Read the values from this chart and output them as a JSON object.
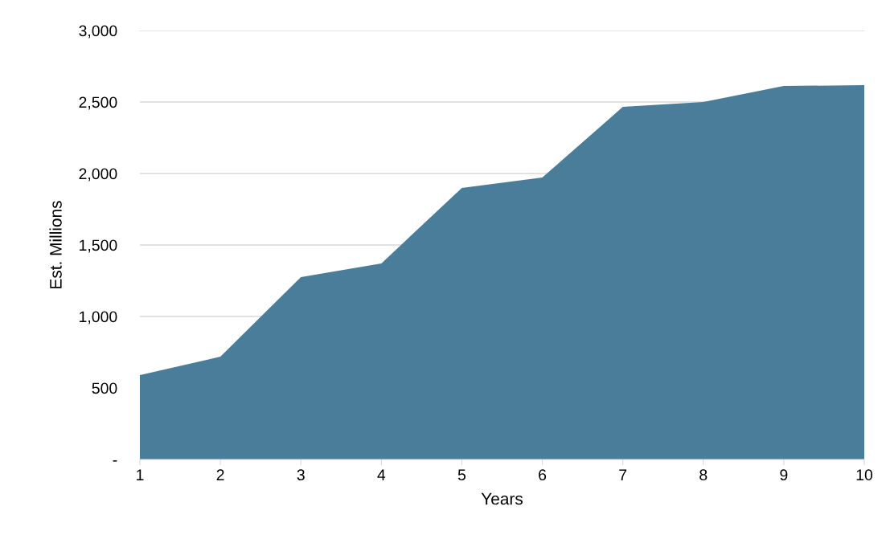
{
  "chart_data": {
    "type": "area",
    "xlabel": "Years",
    "ylabel": "Est. Millions",
    "x": [
      1,
      2,
      3,
      4,
      5,
      6,
      7,
      8,
      9,
      10
    ],
    "series": [
      {
        "color": "#4a7d99",
        "values": [
          590,
          719,
          1275,
          1371,
          1899,
          1972,
          2466,
          2500,
          2612,
          2618
        ]
      }
    ],
    "xlim": [
      1,
      10
    ],
    "xticks": [
      1,
      2,
      3,
      4,
      5,
      6,
      7,
      8,
      9,
      10
    ],
    "ylim": [
      0,
      3000
    ],
    "yticks": [
      {
        "value": 0,
        "label": "-"
      },
      {
        "value": 500,
        "label": "500"
      },
      {
        "value": 1000,
        "label": "1,000"
      },
      {
        "value": 1500,
        "label": "1,500"
      },
      {
        "value": 2000,
        "label": "2,000"
      },
      {
        "value": 2500,
        "label": "2,500"
      },
      {
        "value": 3000,
        "label": "3,000"
      }
    ],
    "grid": "y"
  }
}
